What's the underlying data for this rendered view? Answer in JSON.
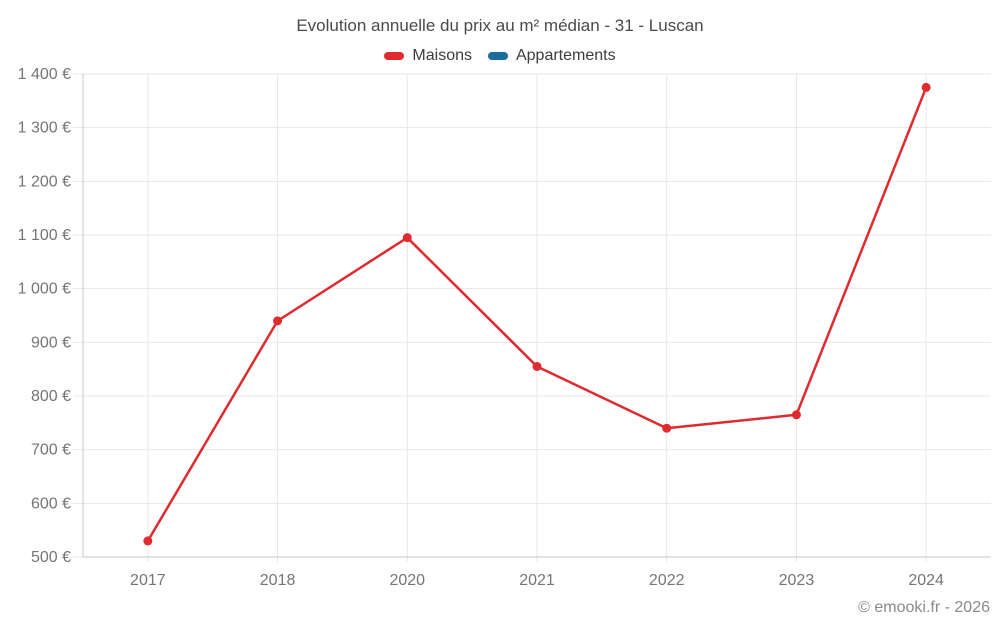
{
  "title": "Evolution annuelle du prix au m² médian - 31 - Luscan",
  "legend": {
    "items": [
      {
        "label": "Maisons",
        "color": "#df2b30"
      },
      {
        "label": "Appartements",
        "color": "#1a6d9c"
      }
    ]
  },
  "footer": {
    "credit": "© emooki.fr - 2026"
  },
  "chart_data": {
    "type": "line",
    "title": "Evolution annuelle du prix au m² médian - 31 - Luscan",
    "categories": [
      "2017",
      "2018",
      "2020",
      "2021",
      "2022",
      "2023",
      "2024"
    ],
    "series": [
      {
        "name": "Maisons",
        "color": "#df2b30",
        "values": [
          530,
          940,
          1095,
          855,
          740,
          765,
          1375
        ]
      },
      {
        "name": "Appartements",
        "color": "#1a6d9c",
        "values": [
          null,
          null,
          null,
          null,
          null,
          null,
          null
        ]
      }
    ],
    "xlabel": "",
    "ylabel": "",
    "ylim": [
      500,
      1400
    ],
    "ytick_step": 100,
    "ytick_suffix": " €",
    "grid": true,
    "legend_position": "top",
    "colors": {
      "gridline": "#e7e7e7",
      "axis_line": "#c9c9c9",
      "tick_label": "#757575"
    }
  }
}
